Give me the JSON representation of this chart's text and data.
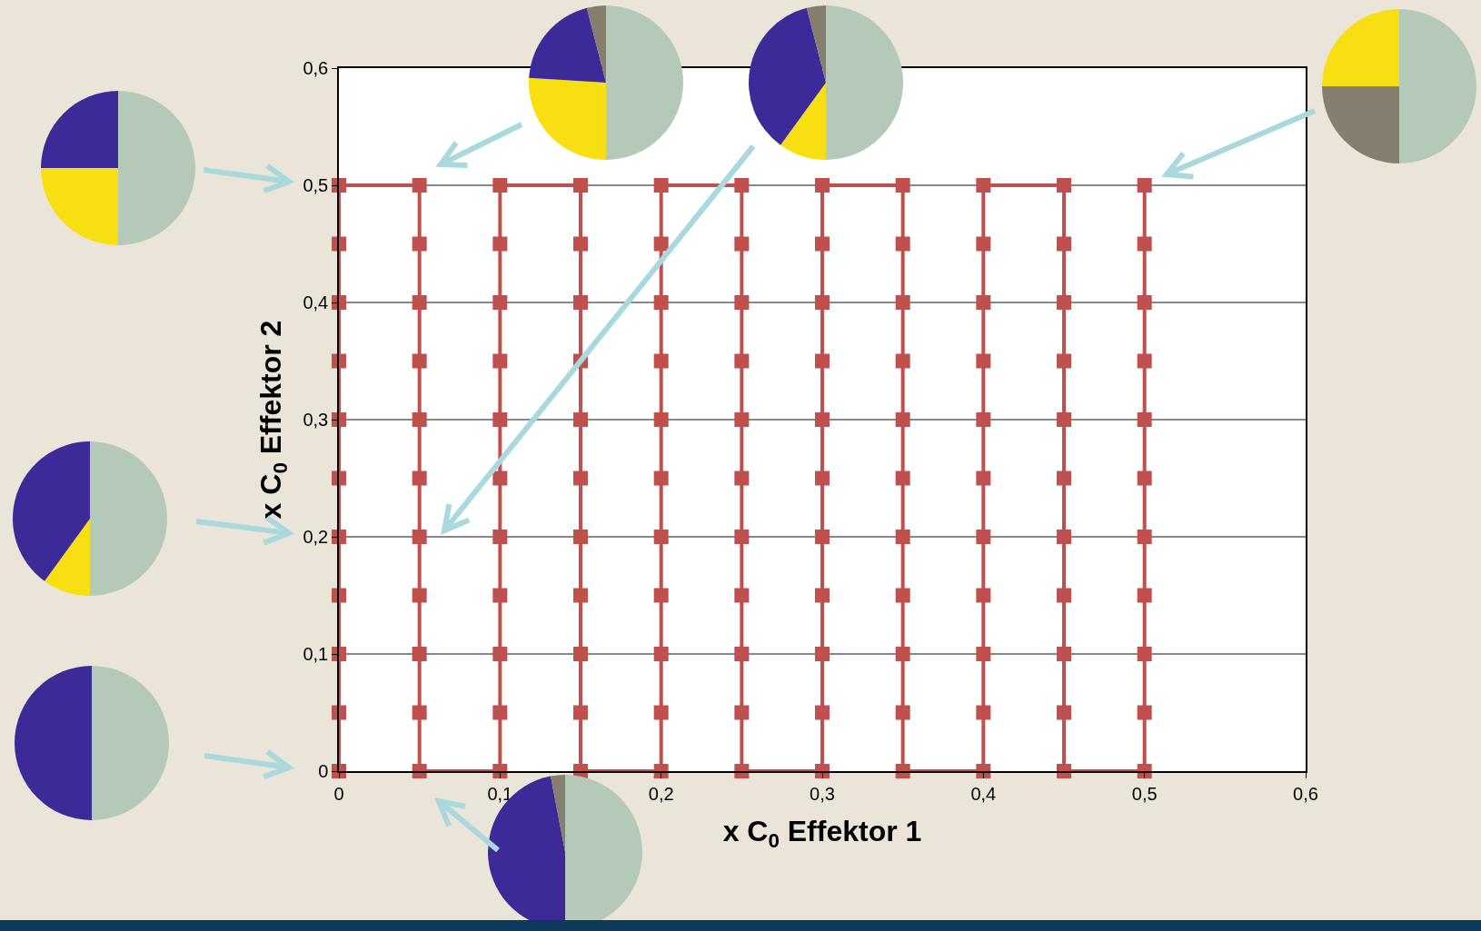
{
  "chart_data": [
    {
      "type": "line",
      "xlabel": "x C$_{0}$ Effektor 1",
      "ylabel": "x C$_{0}$ Effektor 2",
      "xlim": [
        0,
        0.6
      ],
      "ylim": [
        0,
        0.6
      ],
      "xticks": [
        0,
        {
          "value": 0.1,
          "label": "0,1"
        },
        {
          "value": 0.2,
          "label": "0,2"
        },
        {
          "value": 0.3,
          "label": "0,3"
        },
        {
          "value": 0.4,
          "label": "0,4"
        },
        {
          "value": 0.5,
          "label": "0,5"
        },
        {
          "value": 0.6,
          "label": "0,6"
        }
      ],
      "yticks": [
        0,
        {
          "value": 0.1,
          "label": "0,1"
        },
        {
          "value": 0.2,
          "label": "0,2"
        },
        {
          "value": 0.3,
          "label": "0,3"
        },
        {
          "value": 0.4,
          "label": "0,4"
        },
        {
          "value": 0.5,
          "label": "0,5"
        },
        {
          "value": 0.6,
          "label": "0,6"
        }
      ],
      "grid": "y",
      "marker": "square",
      "line_style": "solid",
      "series": [
        {
          "color": "#c0504d",
          "x": [
            0,
            0,
            0,
            0,
            0,
            0,
            0,
            0,
            0,
            0,
            0,
            0.05,
            0.05,
            0.05,
            0.05,
            0.05,
            0.05,
            0.05,
            0.05,
            0.05,
            0.05,
            0.05,
            0.1,
            0.1,
            0.1,
            0.1,
            0.1,
            0.1,
            0.1,
            0.1,
            0.1,
            0.1,
            0.1,
            0.15,
            0.15,
            0.15,
            0.15,
            0.15,
            0.15,
            0.15,
            0.15,
            0.15,
            0.15,
            0.15,
            0.2,
            0.2,
            0.2,
            0.2,
            0.2,
            0.2,
            0.2,
            0.2,
            0.2,
            0.2,
            0.2,
            0.25,
            0.25,
            0.25,
            0.25,
            0.25,
            0.25,
            0.25,
            0.25,
            0.25,
            0.25,
            0.25,
            0.3,
            0.3,
            0.3,
            0.3,
            0.3,
            0.3,
            0.3,
            0.3,
            0.3,
            0.3,
            0.3,
            0.35,
            0.35,
            0.35,
            0.35,
            0.35,
            0.35,
            0.35,
            0.35,
            0.35,
            0.35,
            0.35,
            0.4,
            0.4,
            0.4,
            0.4,
            0.4,
            0.4,
            0.4,
            0.4,
            0.4,
            0.4,
            0.4,
            0.45,
            0.45,
            0.45,
            0.45,
            0.45,
            0.45,
            0.45,
            0.45,
            0.45,
            0.45,
            0.45,
            0.5,
            0.5,
            0.5,
            0.5,
            0.5,
            0.5,
            0.5,
            0.5,
            0.5,
            0.5,
            0.5
          ],
          "values": [
            0,
            0.05,
            0.1,
            0.15,
            0.2,
            0.25,
            0.3,
            0.35,
            0.4,
            0.45,
            0.5,
            0.5,
            0.45,
            0.4,
            0.35,
            0.3,
            0.25,
            0.2,
            0.15,
            0.1,
            0.05,
            0,
            0,
            0.05,
            0.1,
            0.15,
            0.2,
            0.25,
            0.3,
            0.35,
            0.4,
            0.45,
            0.5,
            0.5,
            0.45,
            0.4,
            0.35,
            0.3,
            0.25,
            0.2,
            0.15,
            0.1,
            0.05,
            0,
            0,
            0.05,
            0.1,
            0.15,
            0.2,
            0.25,
            0.3,
            0.35,
            0.4,
            0.45,
            0.5,
            0.5,
            0.45,
            0.4,
            0.35,
            0.3,
            0.25,
            0.2,
            0.15,
            0.1,
            0.05,
            0,
            0,
            0.05,
            0.1,
            0.15,
            0.2,
            0.25,
            0.3,
            0.35,
            0.4,
            0.45,
            0.5,
            0.5,
            0.45,
            0.4,
            0.35,
            0.3,
            0.25,
            0.2,
            0.15,
            0.1,
            0.05,
            0,
            0,
            0.05,
            0.1,
            0.15,
            0.2,
            0.25,
            0.3,
            0.35,
            0.4,
            0.45,
            0.5,
            0.5,
            0.45,
            0.4,
            0.35,
            0.3,
            0.25,
            0.2,
            0.15,
            0.1,
            0.05,
            0,
            0,
            0.05,
            0.1,
            0.15,
            0.2,
            0.25,
            0.3,
            0.35,
            0.4,
            0.45,
            0.5
          ]
        }
      ]
    },
    {
      "type": "pie",
      "categories": [
        null,
        null,
        null
      ],
      "values": [
        50,
        25,
        25
      ],
      "colors": [
        "#b5c9b9",
        "#f7df14",
        "#3c2a98"
      ]
    },
    {
      "type": "pie",
      "categories": [
        null,
        null,
        null,
        null
      ],
      "values": [
        50,
        26,
        20,
        4
      ],
      "colors": [
        "#b5c9b9",
        "#f7df14",
        "#3c2a98",
        "#857f6f"
      ]
    },
    {
      "type": "pie",
      "categories": [
        null,
        null,
        null,
        null
      ],
      "values": [
        50,
        10,
        36,
        4
      ],
      "colors": [
        "#b5c9b9",
        "#f7df14",
        "#3c2a98",
        "#857f6f"
      ]
    },
    {
      "type": "pie",
      "categories": [
        null,
        null,
        null
      ],
      "values": [
        50,
        25,
        25
      ],
      "colors": [
        "#b5c9b9",
        "#857f6f",
        "#f7df14"
      ]
    },
    {
      "type": "pie",
      "categories": [
        null,
        null,
        null
      ],
      "values": [
        50,
        10,
        40
      ],
      "colors": [
        "#b5c9b9",
        "#f7df14",
        "#3c2a98"
      ]
    },
    {
      "type": "pie",
      "categories": [
        null,
        null
      ],
      "values": [
        50,
        50
      ],
      "colors": [
        "#b5c9b9",
        "#3c2a98"
      ]
    },
    {
      "type": "pie",
      "categories": [
        null,
        null,
        null
      ],
      "values": [
        50,
        47,
        3
      ],
      "colors": [
        "#b5c9b9",
        "#3c2a98",
        "#857f6f"
      ]
    }
  ]
}
